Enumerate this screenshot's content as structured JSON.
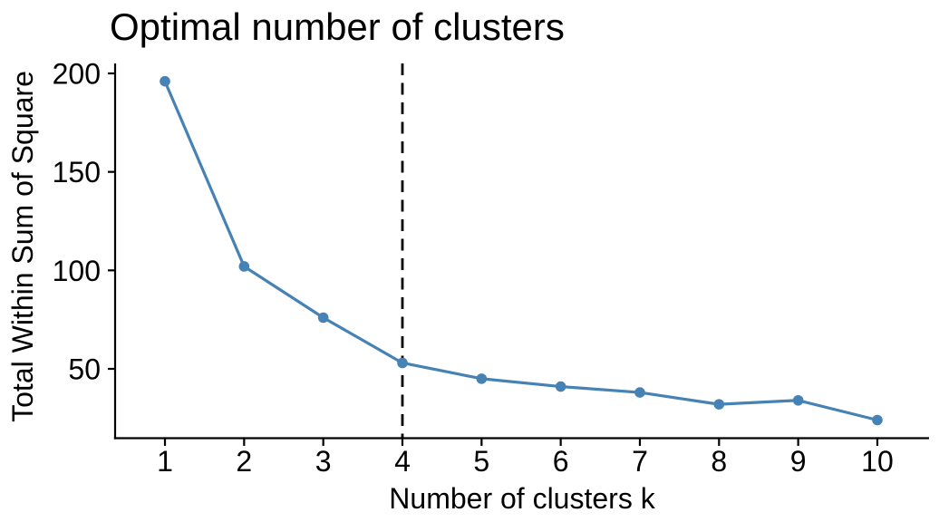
{
  "chart_data": {
    "type": "line",
    "title": "Optimal number of clusters",
    "xlabel": "Number of clusters k",
    "ylabel": "Total Within Sum of Square",
    "x": [
      1,
      2,
      3,
      4,
      5,
      6,
      7,
      8,
      9,
      10
    ],
    "series": [
      {
        "name": "Total Within Sum of Square",
        "values": [
          196,
          102,
          76,
          53,
          45,
          41,
          38,
          32,
          34,
          24
        ]
      }
    ],
    "xticks": [
      1,
      2,
      3,
      4,
      5,
      6,
      7,
      8,
      9,
      10
    ],
    "yticks": [
      50,
      100,
      150,
      200
    ],
    "xlim": [
      0.37,
      10.66
    ],
    "ylim": [
      14.7,
      208
    ],
    "grid": false,
    "legend": "none",
    "background_color": "#ffffff",
    "line_color": "#4682B4",
    "marker_color": "#4682B4",
    "marker": "circle",
    "axis_color": "#000000",
    "text_color": "#000000",
    "vline": {
      "x": 4,
      "linetype": "dashed",
      "color": "#000000"
    }
  }
}
